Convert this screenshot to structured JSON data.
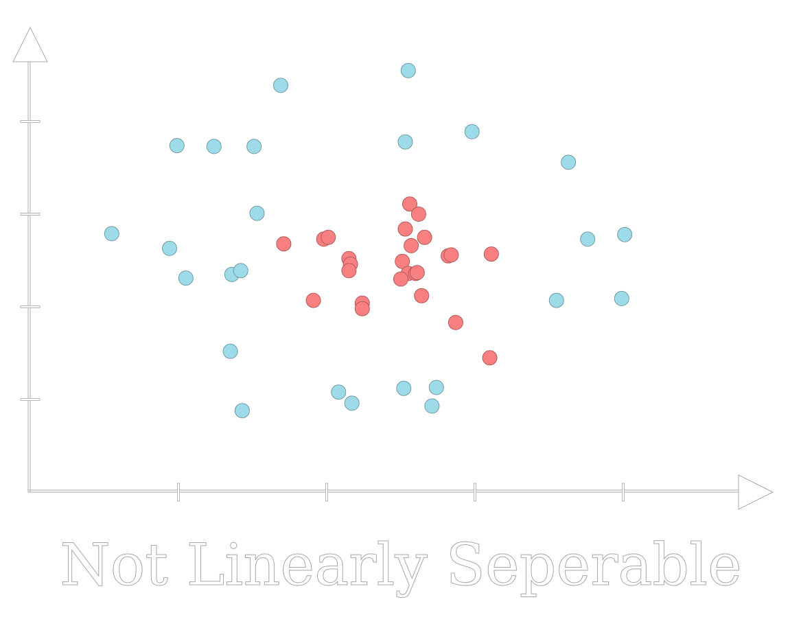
{
  "chart_data": {
    "type": "scatter",
    "title": "Not Linearly Seperable",
    "xlabel": "",
    "ylabel": "",
    "xlim": [
      0,
      5
    ],
    "ylim": [
      0,
      5
    ],
    "x_ticks": [
      1,
      2,
      3,
      4
    ],
    "y_ticks": [
      1,
      2,
      3,
      4
    ],
    "tick_labels_shown": false,
    "grid": false,
    "legend": "none",
    "series": [
      {
        "color": "#9ddbe8",
        "stroke": "#6f9aa3",
        "points": [
          [
            2.55,
            4.55
          ],
          [
            1.69,
            4.39
          ],
          [
            0.99,
            3.74
          ],
          [
            1.24,
            3.73
          ],
          [
            1.51,
            3.73
          ],
          [
            2.53,
            3.78
          ],
          [
            2.98,
            3.89
          ],
          [
            3.63,
            3.56
          ],
          [
            1.53,
            3.01
          ],
          [
            0.55,
            2.79
          ],
          [
            0.94,
            2.63
          ],
          [
            1.05,
            2.31
          ],
          [
            1.36,
            2.35
          ],
          [
            1.42,
            2.39
          ],
          [
            3.76,
            2.73
          ],
          [
            4.01,
            2.78
          ],
          [
            3.55,
            2.07
          ],
          [
            3.99,
            2.09
          ],
          [
            1.35,
            1.52
          ],
          [
            2.08,
            1.08
          ],
          [
            2.17,
            0.96
          ],
          [
            2.52,
            1.12
          ],
          [
            2.74,
            1.13
          ],
          [
            2.71,
            0.93
          ],
          [
            1.43,
            0.88
          ]
        ]
      },
      {
        "color": "#f88080",
        "stroke": "#b05a5a",
        "points": [
          [
            2.56,
            3.11
          ],
          [
            2.62,
            3.0
          ],
          [
            2.53,
            2.84
          ],
          [
            1.71,
            2.68
          ],
          [
            1.98,
            2.73
          ],
          [
            2.01,
            2.75
          ],
          [
            2.66,
            2.75
          ],
          [
            2.57,
            2.66
          ],
          [
            2.82,
            2.55
          ],
          [
            2.84,
            2.56
          ],
          [
            3.11,
            2.57
          ],
          [
            2.15,
            2.52
          ],
          [
            2.16,
            2.46
          ],
          [
            2.15,
            2.39
          ],
          [
            2.51,
            2.49
          ],
          [
            2.55,
            2.36
          ],
          [
            2.6,
            2.36
          ],
          [
            2.61,
            2.37
          ],
          [
            2.5,
            2.3
          ],
          [
            2.64,
            2.12
          ],
          [
            1.91,
            2.07
          ],
          [
            2.24,
            2.04
          ],
          [
            2.24,
            1.98
          ],
          [
            2.87,
            1.83
          ],
          [
            3.1,
            1.45
          ]
        ]
      }
    ]
  }
}
